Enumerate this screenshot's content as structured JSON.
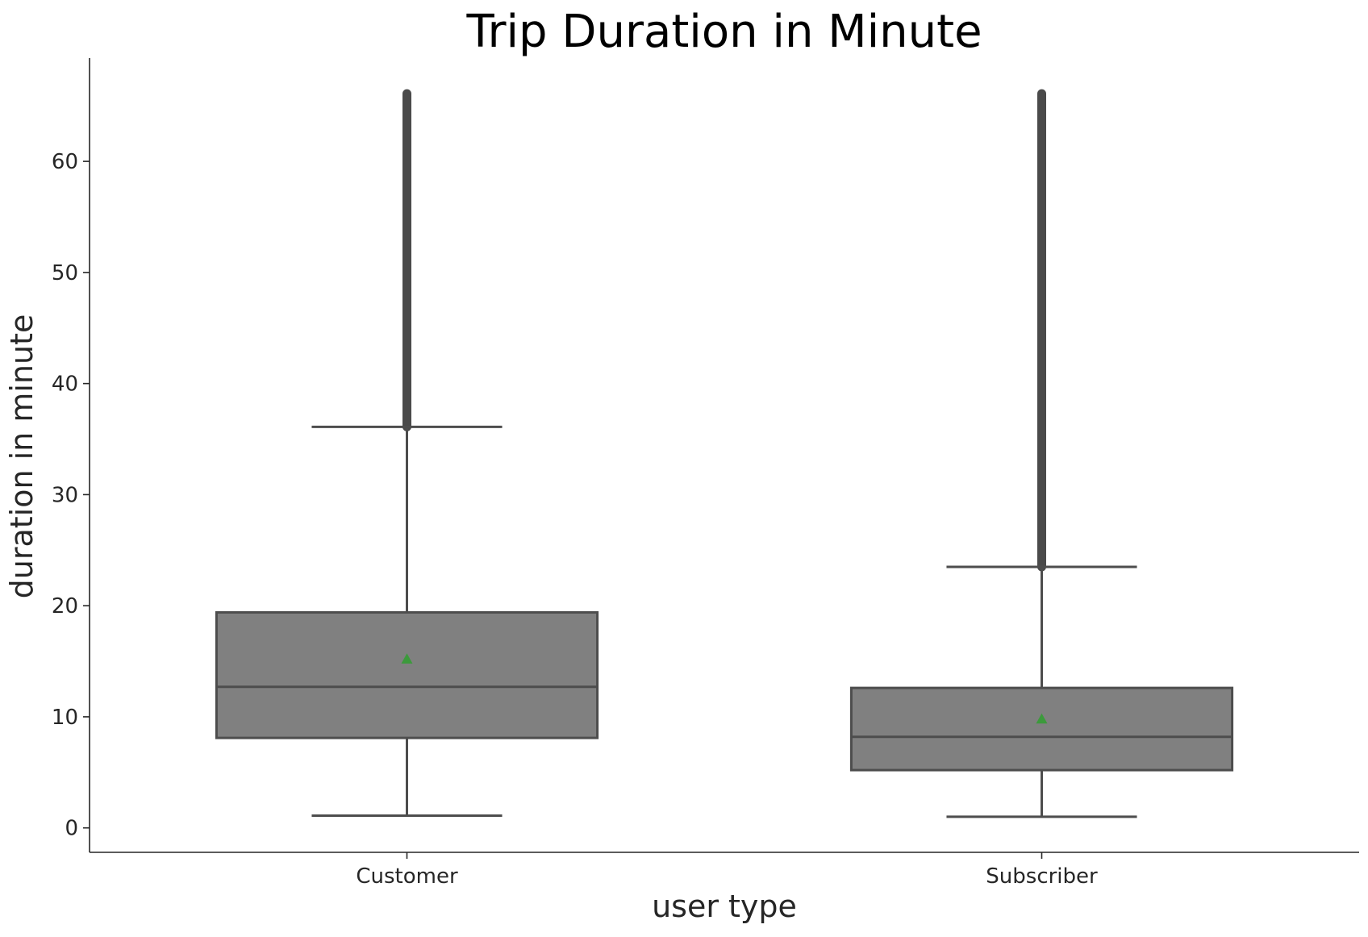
{
  "chart_data": {
    "type": "box",
    "title": "Trip Duration in Minute",
    "xlabel": "user type",
    "ylabel": "duration in minute",
    "ylim": [
      -2.2,
      69.3
    ],
    "yticks": [
      0,
      10,
      20,
      30,
      40,
      50,
      60
    ],
    "ytick_labels": [
      "0",
      "10",
      "20",
      "30",
      "40",
      "50",
      "60"
    ],
    "categories": [
      "Customer",
      "Subscriber"
    ],
    "boxes": [
      {
        "category": "Customer",
        "whisker_low": 1.1,
        "q1": 8.1,
        "median": 12.7,
        "q3": 19.4,
        "whisker_high": 36.1,
        "mean": 15.2,
        "outliers_range": [
          36.1,
          66.1
        ]
      },
      {
        "category": "Subscriber",
        "whisker_low": 1.0,
        "q1": 5.2,
        "median": 8.2,
        "q3": 12.6,
        "whisker_high": 23.5,
        "mean": 9.8,
        "outliers_range": [
          23.5,
          66.1
        ]
      }
    ],
    "grid": false,
    "legend": "none",
    "colors": {
      "box": "#808080",
      "line": "#4d4d4d",
      "mean_marker": "#3c9a3c",
      "axis": "#262626"
    }
  }
}
